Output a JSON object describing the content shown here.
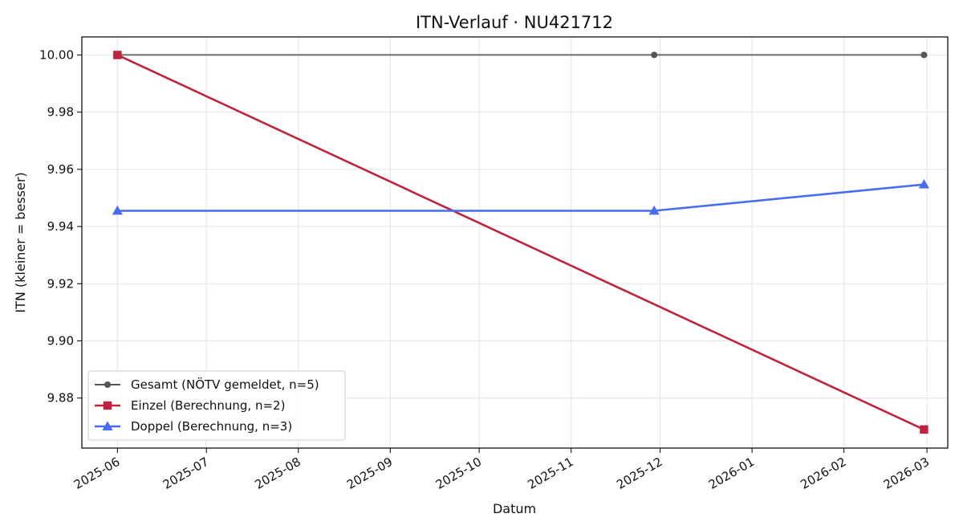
{
  "chart_data": {
    "type": "line",
    "title": "ITN-Verlauf · NU421712",
    "xlabel": "Datum",
    "ylabel": "ITN  (kleiner = besser)",
    "x_type": "date",
    "xlim": [
      "2025-05-20",
      "2026-03-08"
    ],
    "ylim": [
      9.8625,
      10.0063
    ],
    "x_ticks": [
      "2025-06",
      "2025-07",
      "2025-08",
      "2025-09",
      "2025-10",
      "2025-11",
      "2025-12",
      "2026-01",
      "2026-02",
      "2026-03"
    ],
    "y_ticks": [
      "9.88",
      "9.90",
      "9.92",
      "9.94",
      "9.96",
      "9.98",
      "10.00"
    ],
    "grid": true,
    "legend_position": "lower-left",
    "series": [
      {
        "name": "Gesamt (NÖTV gemeldet, n=5)",
        "color": "#555555",
        "marker": "circle",
        "points": [
          [
            "2025-06-01",
            10.0
          ],
          [
            "2025-11-29",
            10.0
          ],
          [
            "2026-02-28",
            10.0
          ]
        ]
      },
      {
        "name": "Einzel (Berechnung, n=2)",
        "color": "#c0233f",
        "marker": "square",
        "points": [
          [
            "2025-06-01",
            10.0
          ],
          [
            "2026-02-28",
            9.869
          ]
        ]
      },
      {
        "name": "Doppel (Berechnung, n=3)",
        "color": "#4a6cf0",
        "marker": "triangle",
        "points": [
          [
            "2025-06-01",
            9.9455
          ],
          [
            "2025-11-29",
            9.9455
          ],
          [
            "2026-02-28",
            9.9547
          ]
        ]
      }
    ]
  }
}
